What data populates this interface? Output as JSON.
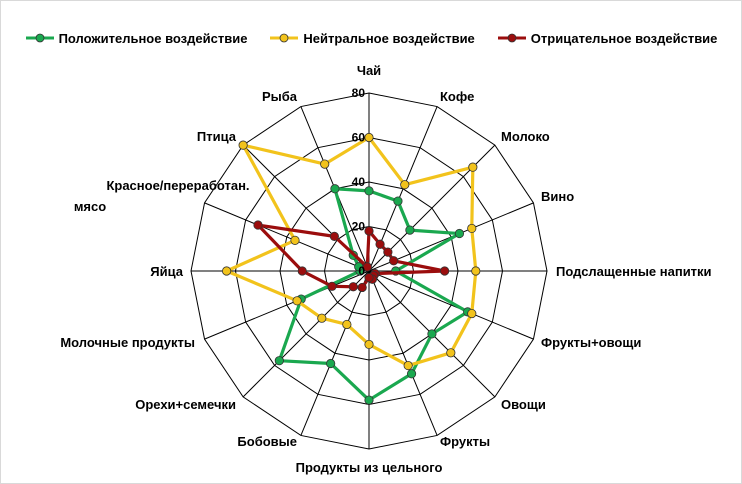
{
  "chart_data": {
    "type": "radar",
    "categories": [
      "Чай",
      "Кофе",
      "Молоко",
      "Вино",
      "Подслащенные напитки",
      "Фрукты+овощи",
      "Овощи",
      "Фрукты",
      "Продукты из цельного",
      "Бобовые",
      "Орехи+семечки",
      "Молочные продукты",
      "Яйца",
      "Красное/переработан. мясо",
      "Птица",
      "Рыба"
    ],
    "radial_ticks": [
      "0",
      "20",
      "40",
      "60",
      "80"
    ],
    "rmax": 80,
    "legend_position": "top",
    "series": [
      {
        "name": "Положительное воздействие",
        "color": "#1aa84f",
        "values": [
          36,
          34,
          26,
          44,
          12,
          48,
          40,
          50,
          58,
          45,
          57,
          33,
          4,
          5,
          10,
          40
        ]
      },
      {
        "name": "Нейтральное воздействие",
        "color": "#f2c31c",
        "values": [
          60,
          42,
          66,
          50,
          48,
          50,
          52,
          46,
          33,
          26,
          30,
          35,
          64,
          36,
          80,
          52
        ]
      },
      {
        "name": "Отрицательное воздействие",
        "color": "#9b0d0d",
        "values": [
          18,
          13,
          12,
          12,
          34,
          3,
          3,
          4,
          3,
          8,
          10,
          18,
          30,
          54,
          22,
          2
        ]
      }
    ]
  }
}
